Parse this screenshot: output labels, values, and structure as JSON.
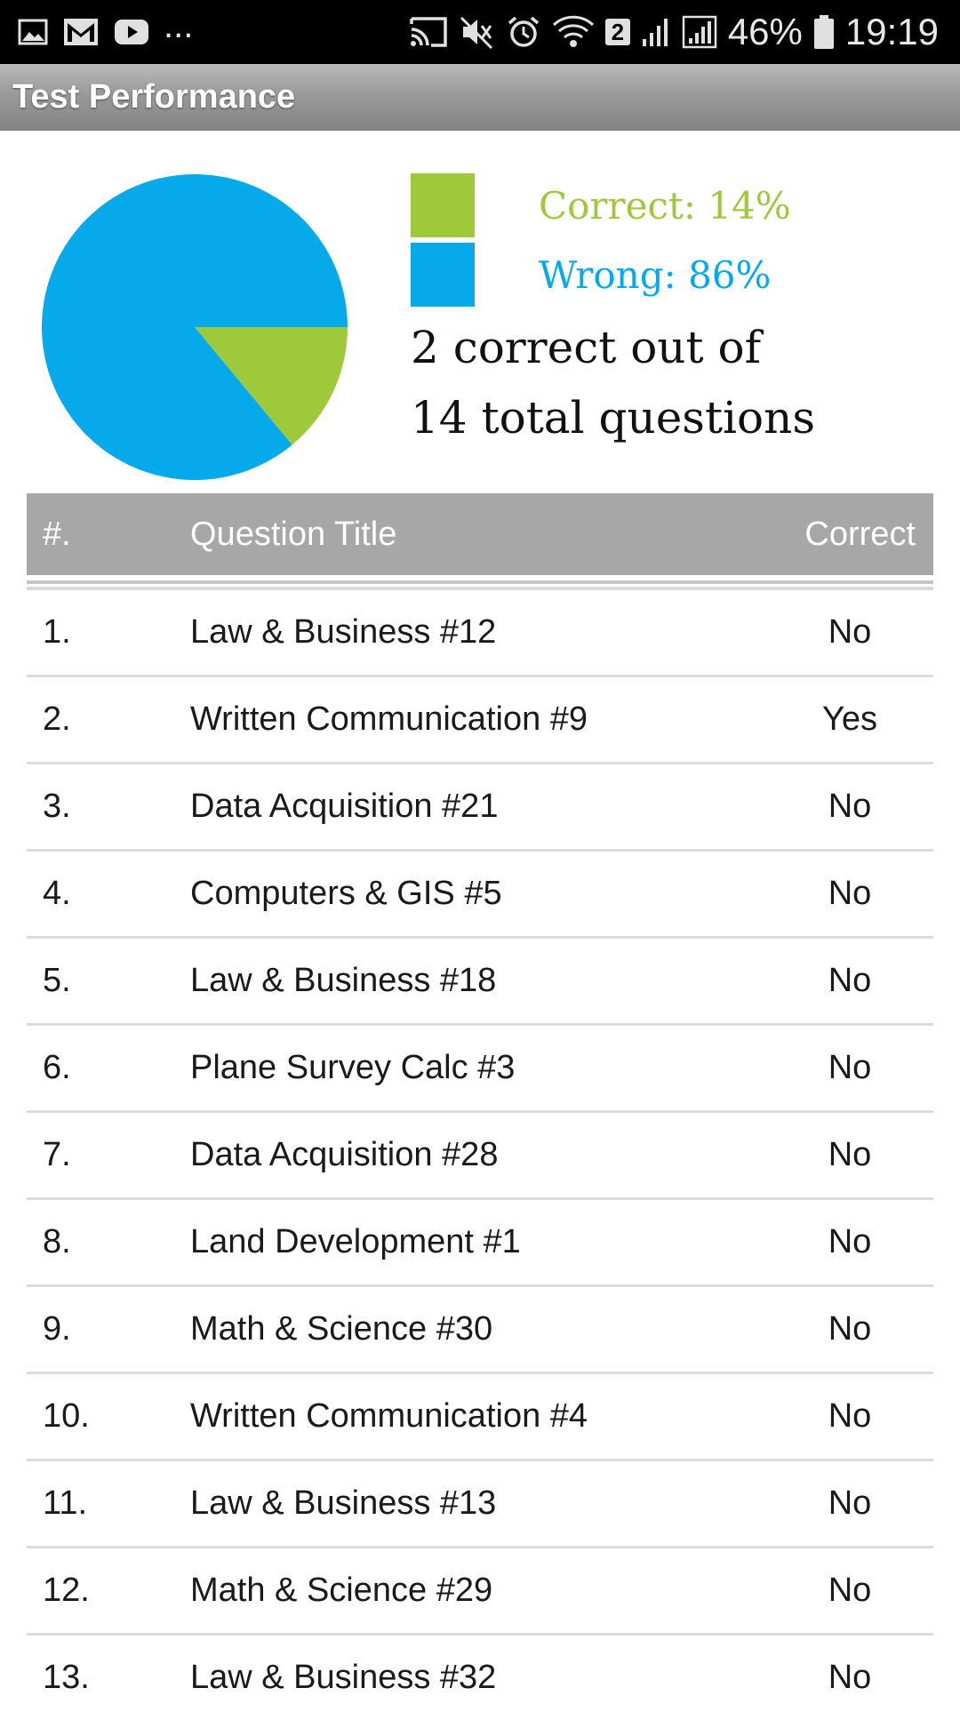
{
  "status_bar": {
    "battery": "46%",
    "time": "19:19",
    "notification_dots": "...",
    "wifi_badge": "2",
    "icons": [
      "gallery-icon",
      "gmail-icon",
      "youtube-icon",
      "cast-icon",
      "mute-icon",
      "alarm-icon",
      "wifi-icon",
      "signal-icon",
      "signal-icon",
      "battery-icon"
    ]
  },
  "app_bar": {
    "title": "Test Performance"
  },
  "summary": {
    "correct_label": "Correct: 14%",
    "wrong_label": "Wrong: 86%",
    "line1": "2 correct out of",
    "line2": "14 total questions",
    "correct_count": 2,
    "total_questions": 14
  },
  "chart_data": {
    "type": "pie",
    "slices": [
      {
        "name": "Correct",
        "value": 14,
        "color": "#9dc93b"
      },
      {
        "name": "Wrong",
        "value": 86,
        "color": "#06aaeb"
      }
    ]
  },
  "colors": {
    "correct": "#9dc93b",
    "wrong": "#06aaeb",
    "header_bg": "#a7a7a7"
  },
  "table": {
    "headers": {
      "num": "#.",
      "title": "Question Title",
      "correct": "Correct"
    },
    "rows": [
      {
        "num": "1.",
        "title": "Law & Business #12",
        "correct": "No"
      },
      {
        "num": "2.",
        "title": "Written Communication #9",
        "correct": "Yes"
      },
      {
        "num": "3.",
        "title": "Data Acquisition #21",
        "correct": "No"
      },
      {
        "num": "4.",
        "title": "Computers & GIS #5",
        "correct": "No"
      },
      {
        "num": "5.",
        "title": "Law & Business #18",
        "correct": "No"
      },
      {
        "num": "6.",
        "title": "Plane Survey Calc #3",
        "correct": "No"
      },
      {
        "num": "7.",
        "title": "Data Acquisition #28",
        "correct": "No"
      },
      {
        "num": "8.",
        "title": "Land Development #1",
        "correct": "No"
      },
      {
        "num": "9.",
        "title": "Math & Science #30",
        "correct": "No"
      },
      {
        "num": "10.",
        "title": "Written Communication #4",
        "correct": "No"
      },
      {
        "num": "11.",
        "title": "Law & Business #13",
        "correct": "No"
      },
      {
        "num": "12.",
        "title": "Math & Science #29",
        "correct": "No"
      },
      {
        "num": "13.",
        "title": "Law & Business #32",
        "correct": "No"
      }
    ]
  }
}
